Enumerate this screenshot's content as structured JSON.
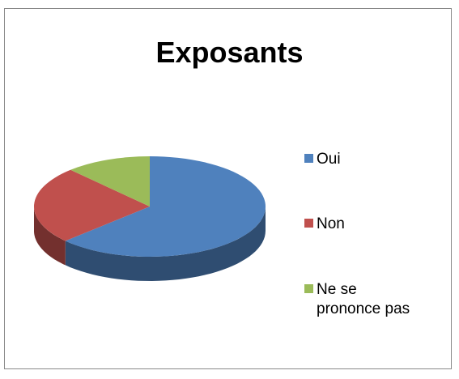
{
  "chart_data": {
    "type": "pie",
    "title": "Exposants",
    "categories": [
      "Oui",
      "Non",
      "Ne se prononce pas"
    ],
    "values": [
      63,
      25,
      12
    ],
    "colors": [
      "#4f81bd",
      "#c0504d",
      "#9bbb59"
    ],
    "legend": "right"
  }
}
